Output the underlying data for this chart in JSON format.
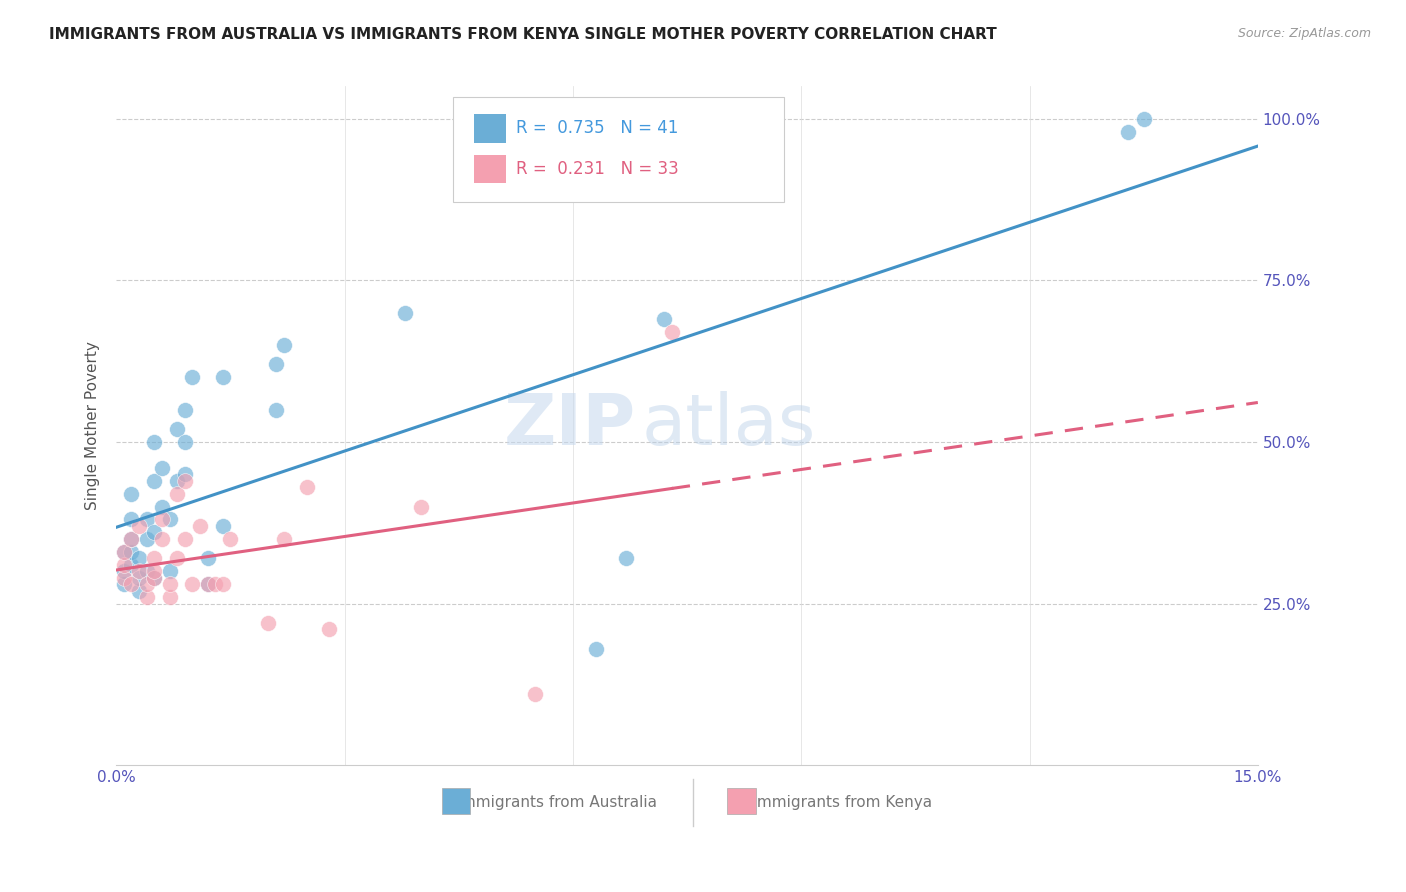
{
  "title": "IMMIGRANTS FROM AUSTRALIA VS IMMIGRANTS FROM KENYA SINGLE MOTHER POVERTY CORRELATION CHART",
  "source": "Source: ZipAtlas.com",
  "ylabel": "Single Mother Poverty",
  "xlim": [
    0.0,
    0.15
  ],
  "ylim": [
    0.0,
    1.05
  ],
  "legend_r_australia": "0.735",
  "legend_n_australia": "41",
  "legend_r_kenya": "0.231",
  "legend_n_kenya": "33",
  "color_australia": "#6baed6",
  "color_kenya": "#f4a0b0",
  "color_line_australia": "#4292c6",
  "color_line_kenya": "#e06080",
  "watermark_zip": "ZIP",
  "watermark_atlas": "atlas",
  "australia_x": [
    0.001,
    0.001,
    0.001,
    0.002,
    0.002,
    0.002,
    0.002,
    0.002,
    0.003,
    0.003,
    0.003,
    0.004,
    0.004,
    0.004,
    0.005,
    0.005,
    0.005,
    0.005,
    0.006,
    0.006,
    0.007,
    0.007,
    0.008,
    0.008,
    0.009,
    0.009,
    0.009,
    0.01,
    0.012,
    0.012,
    0.014,
    0.014,
    0.021,
    0.021,
    0.022,
    0.038,
    0.063,
    0.067,
    0.072,
    0.135,
    0.133
  ],
  "australia_y": [
    0.28,
    0.3,
    0.33,
    0.31,
    0.33,
    0.35,
    0.38,
    0.42,
    0.27,
    0.29,
    0.32,
    0.3,
    0.35,
    0.38,
    0.29,
    0.36,
    0.44,
    0.5,
    0.4,
    0.46,
    0.3,
    0.38,
    0.44,
    0.52,
    0.45,
    0.5,
    0.55,
    0.6,
    0.28,
    0.32,
    0.37,
    0.6,
    0.55,
    0.62,
    0.65,
    0.7,
    0.18,
    0.32,
    0.69,
    1.0,
    0.98
  ],
  "kenya_x": [
    0.001,
    0.001,
    0.001,
    0.002,
    0.002,
    0.003,
    0.003,
    0.004,
    0.004,
    0.005,
    0.005,
    0.005,
    0.006,
    0.006,
    0.007,
    0.007,
    0.008,
    0.008,
    0.009,
    0.009,
    0.01,
    0.011,
    0.012,
    0.013,
    0.014,
    0.015,
    0.02,
    0.022,
    0.025,
    0.028,
    0.04,
    0.055,
    0.073
  ],
  "kenya_y": [
    0.29,
    0.31,
    0.33,
    0.28,
    0.35,
    0.3,
    0.37,
    0.26,
    0.28,
    0.32,
    0.29,
    0.3,
    0.38,
    0.35,
    0.26,
    0.28,
    0.32,
    0.42,
    0.35,
    0.44,
    0.28,
    0.37,
    0.28,
    0.28,
    0.28,
    0.35,
    0.22,
    0.35,
    0.43,
    0.21,
    0.4,
    0.11,
    0.67
  ]
}
